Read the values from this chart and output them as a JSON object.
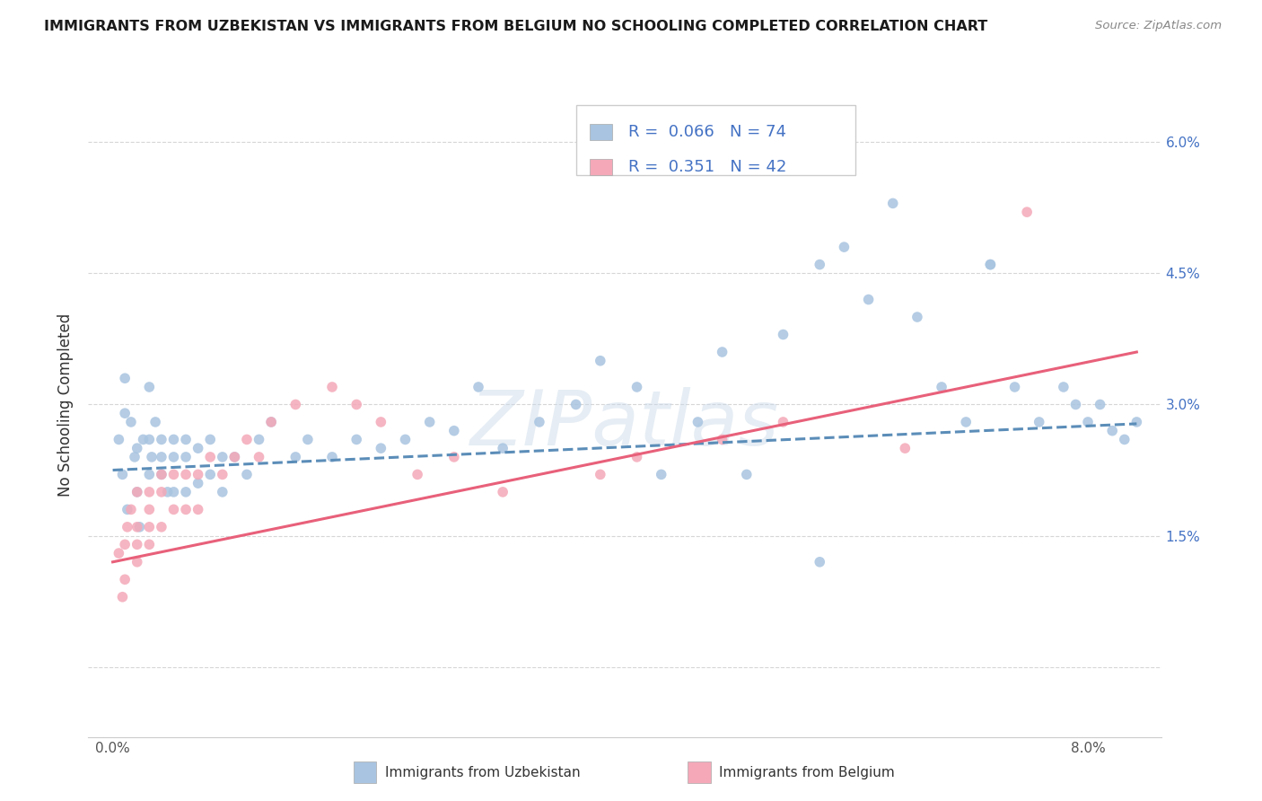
{
  "title": "IMMIGRANTS FROM UZBEKISTAN VS IMMIGRANTS FROM BELGIUM NO SCHOOLING COMPLETED CORRELATION CHART",
  "source_text": "Source: ZipAtlas.com",
  "ylabel": "No Schooling Completed",
  "watermark": "ZIPatlas",
  "xlim": [
    -0.002,
    0.086
  ],
  "ylim": [
    -0.008,
    0.068
  ],
  "x_ticks": [
    0.0,
    0.01,
    0.02,
    0.03,
    0.04,
    0.05,
    0.06,
    0.07,
    0.08
  ],
  "x_tick_labels": [
    "0.0%",
    "",
    "",
    "",
    "",
    "",
    "",
    "",
    "8.0%"
  ],
  "y_ticks": [
    0.0,
    0.015,
    0.03,
    0.045,
    0.06
  ],
  "y_tick_labels": [
    "",
    "1.5%",
    "3.0%",
    "4.5%",
    "6.0%"
  ],
  "series1_color": "#a8c4e0",
  "series2_color": "#f4a8b8",
  "series1_line_color": "#5b8db8",
  "series2_line_color": "#e8607a",
  "legend_R1": "0.066",
  "legend_N1": "74",
  "legend_R2": "0.351",
  "legend_N2": "42",
  "legend_label1": "Immigrants from Uzbekistan",
  "legend_label2": "Immigrants from Belgium",
  "uzb_x": [
    0.0005,
    0.0008,
    0.001,
    0.001,
    0.0012,
    0.0015,
    0.0018,
    0.002,
    0.002,
    0.0022,
    0.0025,
    0.003,
    0.003,
    0.003,
    0.0032,
    0.0035,
    0.004,
    0.004,
    0.004,
    0.0045,
    0.005,
    0.005,
    0.005,
    0.006,
    0.006,
    0.006,
    0.007,
    0.007,
    0.008,
    0.008,
    0.009,
    0.009,
    0.01,
    0.011,
    0.012,
    0.013,
    0.015,
    0.016,
    0.018,
    0.02,
    0.022,
    0.024,
    0.026,
    0.028,
    0.03,
    0.032,
    0.035,
    0.038,
    0.04,
    0.043,
    0.045,
    0.048,
    0.05,
    0.052,
    0.055,
    0.058,
    0.06,
    0.062,
    0.064,
    0.066,
    0.068,
    0.07,
    0.072,
    0.074,
    0.076,
    0.078,
    0.079,
    0.08,
    0.081,
    0.082,
    0.083,
    0.084,
    0.072,
    0.058
  ],
  "uzb_y": [
    0.026,
    0.022,
    0.029,
    0.033,
    0.018,
    0.028,
    0.024,
    0.025,
    0.02,
    0.016,
    0.026,
    0.032,
    0.026,
    0.022,
    0.024,
    0.028,
    0.026,
    0.022,
    0.024,
    0.02,
    0.024,
    0.02,
    0.026,
    0.024,
    0.02,
    0.026,
    0.025,
    0.021,
    0.026,
    0.022,
    0.024,
    0.02,
    0.024,
    0.022,
    0.026,
    0.028,
    0.024,
    0.026,
    0.024,
    0.026,
    0.025,
    0.026,
    0.028,
    0.027,
    0.032,
    0.025,
    0.028,
    0.03,
    0.035,
    0.032,
    0.022,
    0.028,
    0.036,
    0.022,
    0.038,
    0.046,
    0.048,
    0.042,
    0.053,
    0.04,
    0.032,
    0.028,
    0.046,
    0.032,
    0.028,
    0.032,
    0.03,
    0.028,
    0.03,
    0.027,
    0.026,
    0.028,
    0.046,
    0.012
  ],
  "bel_x": [
    0.0005,
    0.0008,
    0.001,
    0.001,
    0.0012,
    0.0015,
    0.002,
    0.002,
    0.002,
    0.002,
    0.003,
    0.003,
    0.003,
    0.003,
    0.004,
    0.004,
    0.004,
    0.005,
    0.005,
    0.006,
    0.006,
    0.007,
    0.007,
    0.008,
    0.009,
    0.01,
    0.011,
    0.012,
    0.013,
    0.015,
    0.018,
    0.02,
    0.022,
    0.025,
    0.028,
    0.032,
    0.04,
    0.043,
    0.05,
    0.055,
    0.065,
    0.075
  ],
  "bel_y": [
    0.013,
    0.008,
    0.014,
    0.01,
    0.016,
    0.018,
    0.014,
    0.02,
    0.016,
    0.012,
    0.018,
    0.014,
    0.02,
    0.016,
    0.02,
    0.016,
    0.022,
    0.018,
    0.022,
    0.022,
    0.018,
    0.022,
    0.018,
    0.024,
    0.022,
    0.024,
    0.026,
    0.024,
    0.028,
    0.03,
    0.032,
    0.03,
    0.028,
    0.022,
    0.024,
    0.02,
    0.022,
    0.024,
    0.026,
    0.028,
    0.025,
    0.052
  ],
  "uzb_trend_x0": 0.0,
  "uzb_trend_x1": 0.084,
  "uzb_trend_y0": 0.0225,
  "uzb_trend_y1": 0.0278,
  "bel_trend_x0": 0.0,
  "bel_trend_x1": 0.084,
  "bel_trend_y0": 0.012,
  "bel_trend_y1": 0.036
}
